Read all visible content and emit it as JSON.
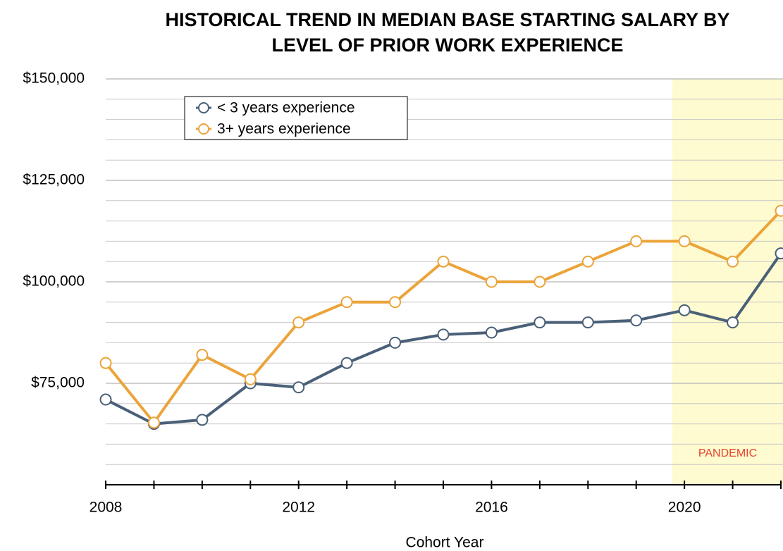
{
  "chart_data": {
    "type": "line",
    "title": [
      "HISTORICAL TREND IN MEDIAN BASE STARTING SALARY BY",
      "LEVEL OF PRIOR WORK EXPERIENCE"
    ],
    "x_label": "Cohort Year",
    "x": [
      2008,
      2009,
      2010,
      2011,
      2012,
      2013,
      2014,
      2015,
      2016,
      2017,
      2018,
      2019,
      2020,
      2021,
      2022
    ],
    "series": [
      {
        "name": "< 3 years experience",
        "color": "#4a6078",
        "values": [
          71000,
          65000,
          66000,
          75000,
          74000,
          80000,
          85000,
          87000,
          87500,
          90000,
          90000,
          90500,
          93000,
          90000,
          107000
        ]
      },
      {
        "name": "3+ years experience",
        "color": "#eba43a",
        "values": [
          80000,
          65300,
          82000,
          76000,
          90000,
          95000,
          95000,
          105000,
          100000,
          100000,
          105000,
          110000,
          110000,
          105000,
          117500
        ]
      }
    ],
    "xlim": [
      2008,
      2022
    ],
    "xticks": [
      2008,
      2012,
      2016,
      2020
    ],
    "xminorticks": [
      2009,
      2010,
      2011,
      2013,
      2014,
      2015,
      2017,
      2018,
      2019,
      2021,
      2022
    ],
    "ylim": [
      50000,
      150000
    ],
    "yticks": [
      {
        "value": 75000,
        "label": "$75,000"
      },
      {
        "value": 100000,
        "label": "$100,000"
      },
      {
        "value": 125000,
        "label": "$125,000"
      },
      {
        "value": 150000,
        "label": "$150,000"
      }
    ],
    "yminorticks": [
      55000,
      60000,
      65000,
      70000,
      80000,
      85000,
      90000,
      95000,
      105000,
      110000,
      115000,
      120000,
      130000,
      135000,
      140000,
      145000
    ],
    "grid": true,
    "legend": "upper left",
    "shaded_region": {
      "label": "PANDEMIC",
      "x_range": [
        2019.75,
        2022
      ],
      "color": "#fdfbcf",
      "label_color": "#e8412c"
    }
  }
}
